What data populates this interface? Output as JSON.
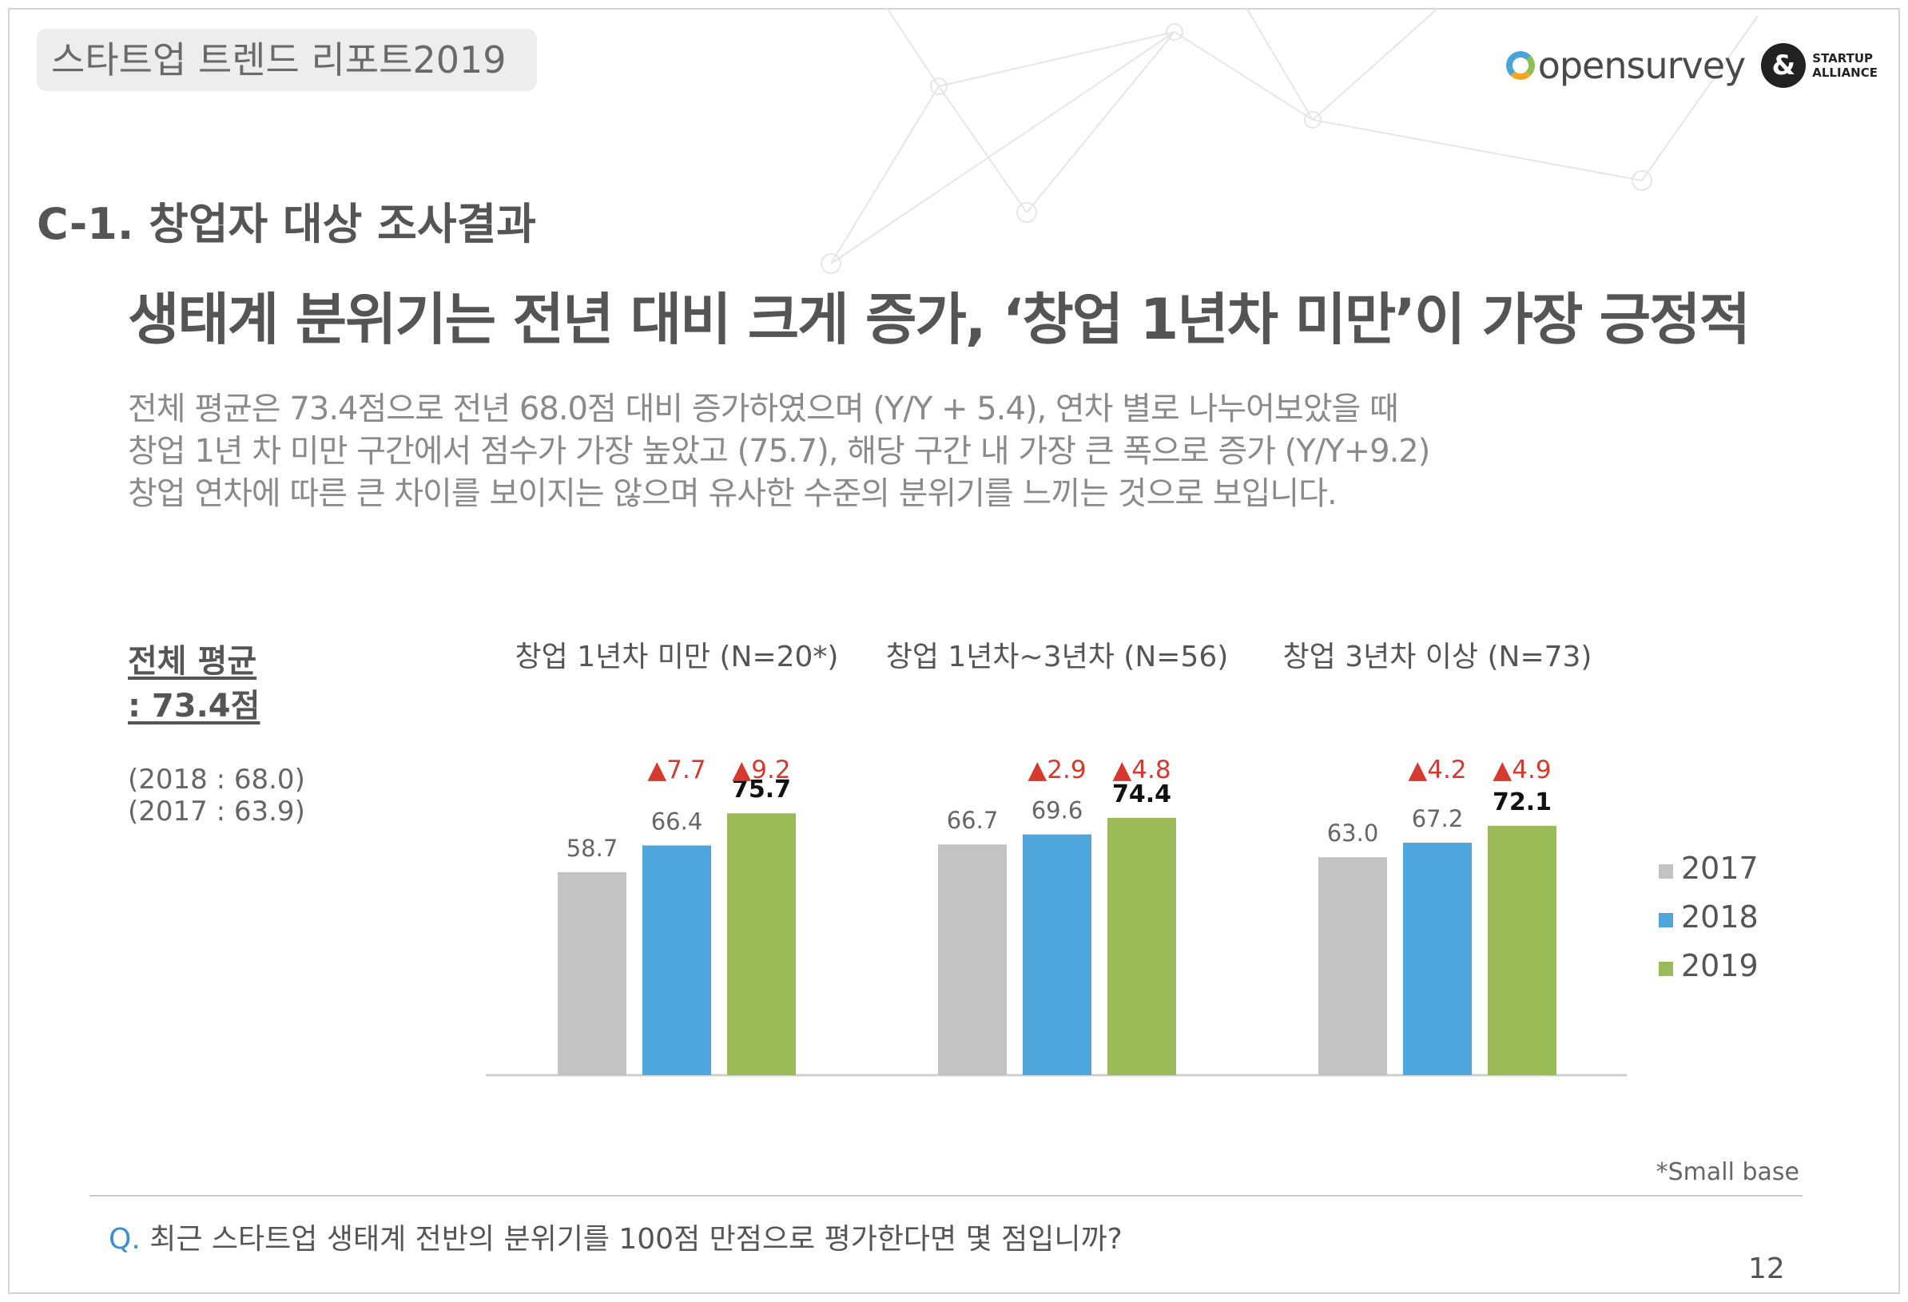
{
  "header": {
    "report_tag": "스타트업 트렌드 리포트2019",
    "brand_opensurvey": "opensurvey",
    "brand_startup_mark": "&",
    "brand_startup_line1": "STARTUP",
    "brand_startup_line2": "ALLIANCE"
  },
  "section_title": "C-1. 창업자 대상 조사결과",
  "headline": "생태계 분위기는 전년 대비 크게 증가, ‘창업 1년차 미만’이 가장 긍정적",
  "description": [
    "전체 평균은 73.4점으로 전년 68.0점 대비 증가하였으며 (Y/Y + 5.4), 연차 별로 나누어보았을 때",
    "창업 1년 차 미만 구간에서 점수가 가장 높았고 (75.7), 해당 구간 내 가장 큰 폭으로 증가 (Y/Y+9.2)",
    "창업 연차에 따른 큰 차이를 보이지는 않으며 유사한 수준의 분위기를 느끼는 것으로 보입니다."
  ],
  "overall": {
    "label_line1": "전체 평균",
    "label_line2": ": 73.4점",
    "prev_2018": "(2018 : 68.0)",
    "prev_2017": "(2017 : 63.9)"
  },
  "chart_data": {
    "type": "bar",
    "categories": [
      "창업 1년차 미만 (N=20*)",
      "창업 1년차~3년차 (N=56)",
      "창업 3년차 이상 (N=73)"
    ],
    "series": [
      {
        "name": "2017",
        "values": [
          58.7,
          66.7,
          63.0
        ],
        "color": "#c3c3c3"
      },
      {
        "name": "2018",
        "values": [
          66.4,
          69.6,
          67.2
        ],
        "color": "#4ea6dc"
      },
      {
        "name": "2019",
        "values": [
          75.7,
          74.4,
          72.1
        ],
        "color": "#9bbb59"
      }
    ],
    "change_labels": [
      {
        "2018": "▲7.7",
        "2019": "▲9.2"
      },
      {
        "2018": "▲2.9",
        "2019": "▲4.8"
      },
      {
        "2018": "▲4.2",
        "2019": "▲4.9"
      }
    ],
    "change_color": "#d63a2f",
    "legend_position": "right",
    "grid": false
  },
  "footnote": "*Small base",
  "question": {
    "prefix": "Q.",
    "text": "최근 스타트업 생태계 전반의 분위기를 100점 만점으로 평가한다면 몇 점입니까?"
  },
  "page_number": "12"
}
